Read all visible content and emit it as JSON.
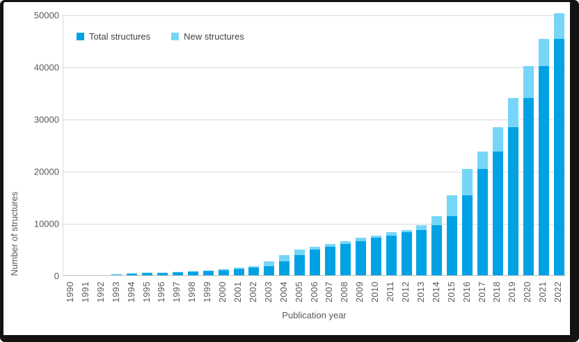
{
  "colors": {
    "bar_total": "#00a2e3",
    "bar_new": "#76d6f8",
    "gridline": "#d9d9d9",
    "axis_line": "#bfbfbf",
    "text": "#595959",
    "frame": "#131313",
    "background": "#ffffff"
  },
  "legend": {
    "items": [
      {
        "label": "Total structures",
        "color": "#00a2e3"
      },
      {
        "label": "New structures",
        "color": "#76d6f8"
      }
    ]
  },
  "chart_data": {
    "type": "bar",
    "stacked": true,
    "title": "",
    "xlabel": "Publication year",
    "ylabel": "Number of structures",
    "ylim": [
      0,
      50000
    ],
    "yticks": [
      0,
      10000,
      20000,
      30000,
      40000,
      50000
    ],
    "ytick_labels": [
      "0",
      "10000",
      "20000",
      "30000",
      "40000",
      "50000"
    ],
    "grid": "horizontal",
    "legend_position": "top-left-inside",
    "categories": [
      "1990",
      "1991",
      "1992",
      "1993",
      "1994",
      "1995",
      "1996",
      "1997",
      "1998",
      "1999",
      "2000",
      "2001",
      "2002",
      "2003",
      "2004",
      "2005",
      "2006",
      "2007",
      "2008",
      "2009",
      "2010",
      "2011",
      "2012",
      "2013",
      "2014",
      "2015",
      "2016",
      "2017",
      "2018",
      "2019",
      "2020",
      "2021",
      "2022"
    ],
    "series": [
      {
        "name": "Total structures",
        "color": "#00a2e3",
        "values": [
          0,
          0,
          0,
          0,
          270,
          400,
          500,
          590,
          720,
          850,
          1000,
          1200,
          1450,
          1700,
          2700,
          3850,
          4950,
          5500,
          6050,
          6500,
          7150,
          7600,
          8250,
          8700,
          9600,
          11350,
          15350,
          20450,
          23800,
          28450,
          33950,
          40200,
          45300
        ]
      },
      {
        "name": "New structures",
        "color": "#76d6f8",
        "values": [
          0,
          0,
          0,
          270,
          130,
          100,
          90,
          130,
          130,
          150,
          200,
          250,
          250,
          1000,
          1150,
          1100,
          550,
          550,
          450,
          650,
          450,
          650,
          450,
          900,
          1750,
          4000,
          5100,
          3350,
          4650,
          5500,
          6250,
          5100,
          4900
        ]
      }
    ],
    "bar_totals": [
      0,
      0,
      0,
      270,
      400,
      500,
      590,
      720,
      850,
      1000,
      1200,
      1450,
      1700,
      2700,
      3850,
      4950,
      5500,
      6050,
      6500,
      7150,
      7600,
      8250,
      8700,
      9600,
      11350,
      15350,
      20450,
      23800,
      28450,
      33950,
      40200,
      45300,
      50200
    ]
  }
}
